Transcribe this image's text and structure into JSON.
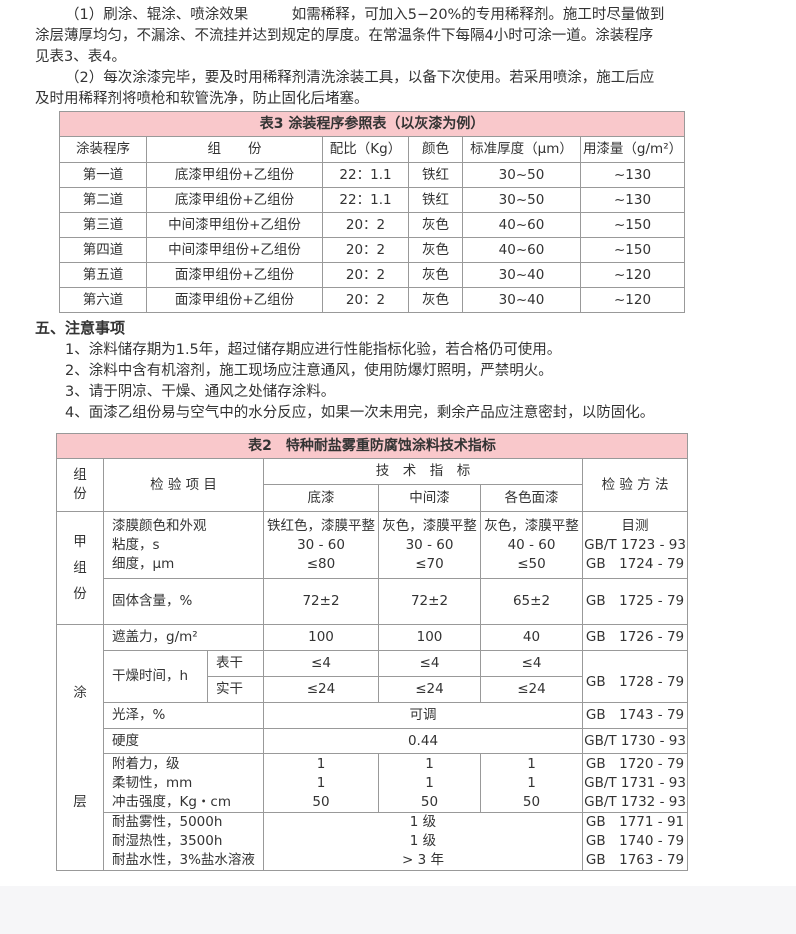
{
  "para1": {
    "line1": "（1）刷涂、辊涂、喷涂效果　　　如需稀释，可加入5−20%的专用稀释剂。施工时尽量做到",
    "line2": "涂层薄厚均匀，不漏涂、不流挂并达到规定的厚度。在常温条件下每隔4小时可涂一道。涂装程序",
    "line3": "见表3、表4。"
  },
  "para2": {
    "line1": "（2）每次涂漆完毕，要及时用稀释剂清洗涂装工具，以备下次使用。若采用喷涂，施工后应",
    "line2": "及时用稀释剂将喷枪和软管洗净，防止固化后堵塞。"
  },
  "table3": {
    "title": "表3 涂装程序参照表（以灰漆为例）",
    "headers": [
      "涂装程序",
      "组　　份",
      "配比（Kg）",
      "颜色",
      "标准厚度（μm）",
      "用漆量（g/m²）"
    ],
    "rows": [
      [
        "第一道",
        "底漆甲组份+乙组份",
        "22：1.1",
        "铁红",
        "30~50",
        "~130"
      ],
      [
        "第二道",
        "底漆甲组份+乙组份",
        "22：1.1",
        "铁红",
        "30~50",
        "~130"
      ],
      [
        "第三道",
        "中间漆甲组份+乙组份",
        "20：2",
        "灰色",
        "40~60",
        "~150"
      ],
      [
        "第四道",
        "中间漆甲组份+乙组份",
        "20：2",
        "灰色",
        "40~60",
        "~150"
      ],
      [
        "第五道",
        "面漆甲组份+乙组份",
        "20：2",
        "灰色",
        "30~40",
        "~120"
      ],
      [
        "第六道",
        "面漆甲组份+乙组份",
        "20：2",
        "灰色",
        "30~40",
        "~120"
      ]
    ]
  },
  "section5": {
    "heading": "五、注意事项",
    "items": [
      "1、涂料储存期为1.5年，超过储存期应进行性能指标化验，若合格仍可使用。",
      "2、涂料中含有机溶剂，施工现场应注意通风，使用防爆灯照明，严禁明火。",
      "3、请于阴凉、干燥、通风之处储存涂料。",
      "4、面漆乙组份易与空气中的水分反应，如果一次未用完，剩余产品应注意密封，以防固化。"
    ]
  },
  "table2": {
    "title": "表2　特种耐盐雾重防腐蚀涂料技术指标",
    "h_group": [
      "组",
      "份"
    ],
    "h_item": "检 验 项 目",
    "h_tech": "技　术　指　标",
    "h_cols": [
      "底漆",
      "中间漆",
      "各色面漆"
    ],
    "h_method": "检 验 方 法",
    "g1": [
      "甲",
      "组",
      "份"
    ],
    "g2": [
      "涂",
      "层"
    ],
    "r1": {
      "items": [
        "漆膜颜色和外观",
        "粘度，s",
        "细度，μm"
      ],
      "a": [
        "铁红色，漆膜平整",
        "30 - 60",
        "≤80"
      ],
      "b": [
        "灰色，漆膜平整",
        "30 - 60",
        "≤70"
      ],
      "c": [
        "灰色，漆膜平整",
        "40 - 60",
        "≤50"
      ],
      "m": [
        "目测",
        "GB/T 1723 - 93",
        "GB　1724 - 79"
      ]
    },
    "r2": {
      "item": "固体含量，%",
      "a": "72±2",
      "b": "72±2",
      "c": "65±2",
      "m": "GB　1725 - 79"
    },
    "r3": {
      "item": "遮盖力，g/m²",
      "a": "100",
      "b": "100",
      "c": "40",
      "m": "GB　1726 - 79"
    },
    "r4": {
      "item": "干燥时间，h",
      "sub1": "表干",
      "sub2": "实干",
      "a1": "≤4",
      "b1": "≤4",
      "c1": "≤4",
      "a2": "≤24",
      "b2": "≤24",
      "c2": "≤24",
      "m": "GB　1728 - 79"
    },
    "r5": {
      "item": "光泽，%",
      "v": "可调",
      "m": "GB　1743 - 79"
    },
    "r6": {
      "item": "硬度",
      "v": "0.44",
      "m": "GB/T 1730 - 93"
    },
    "r7": {
      "items": [
        "附着力，级",
        "柔韧性，mm",
        "冲击强度，Kg・cm"
      ],
      "a": [
        "1",
        "1",
        "50"
      ],
      "b": [
        "1",
        "1",
        "50"
      ],
      "c": [
        "1",
        "1",
        "50"
      ],
      "m": [
        "GB　1720 - 79",
        "GB/T 1731 - 93",
        "GB/T 1732 - 93"
      ]
    },
    "r8": {
      "items": [
        "耐盐雾性，5000h",
        "耐湿热性，3500h",
        "耐盐水性，3%盐水溶液"
      ],
      "v": [
        "1 级",
        "1 级",
        "> 3 年"
      ],
      "m": [
        "GB　1771 - 91",
        "GB　1740 - 79",
        "GB　1763 - 79"
      ]
    }
  }
}
